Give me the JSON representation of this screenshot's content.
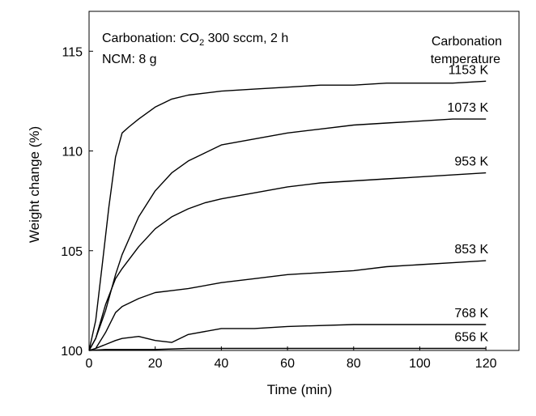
{
  "chart_data": {
    "type": "line",
    "title": "",
    "xlabel": "Time (min)",
    "ylabel": "Weight change (%)",
    "xlim": [
      0,
      130
    ],
    "ylim": [
      100,
      117
    ],
    "xticks": [
      0,
      20,
      40,
      60,
      80,
      100,
      120
    ],
    "yticks": [
      100,
      105,
      110,
      115
    ],
    "grid": false,
    "line_color": "#000000",
    "annotations": {
      "condition_prefix": "Carbonation: CO",
      "condition_sub": "2",
      "condition_suffix": " 300 sccm, 2 h",
      "ncm": "NCM: 8 g",
      "legend_title_line1": "Carbonation",
      "legend_title_line2": "temperature"
    },
    "series": [
      {
        "name": "1153 K",
        "x": [
          0,
          2,
          4,
          6,
          8,
          10,
          12,
          15,
          20,
          25,
          30,
          40,
          50,
          60,
          70,
          80,
          90,
          100,
          110,
          120
        ],
        "y": [
          100,
          101.5,
          104.3,
          107.2,
          109.7,
          110.9,
          111.2,
          111.6,
          112.2,
          112.6,
          112.8,
          113.0,
          113.1,
          113.2,
          113.3,
          113.3,
          113.4,
          113.4,
          113.4,
          113.5
        ]
      },
      {
        "name": "1073 K",
        "x": [
          0,
          2,
          5,
          8,
          10,
          15,
          20,
          25,
          30,
          35,
          40,
          50,
          60,
          70,
          80,
          90,
          100,
          110,
          120
        ],
        "y": [
          100,
          100.6,
          102.0,
          103.8,
          104.8,
          106.7,
          108.0,
          108.9,
          109.5,
          109.9,
          110.3,
          110.6,
          110.9,
          111.1,
          111.3,
          111.4,
          111.5,
          111.6,
          111.6
        ]
      },
      {
        "name": "953 K",
        "x": [
          0,
          2,
          5,
          8,
          10,
          15,
          20,
          25,
          30,
          35,
          40,
          50,
          60,
          70,
          80,
          90,
          100,
          110,
          120
        ],
        "y": [
          100,
          100.6,
          102.3,
          103.6,
          104.1,
          105.2,
          106.1,
          106.7,
          107.1,
          107.4,
          107.6,
          107.9,
          108.2,
          108.4,
          108.5,
          108.6,
          108.7,
          108.8,
          108.9
        ]
      },
      {
        "name": "853 K",
        "x": [
          0,
          2,
          5,
          8,
          10,
          15,
          20,
          25,
          30,
          40,
          50,
          60,
          70,
          80,
          90,
          100,
          110,
          120
        ],
        "y": [
          100,
          100.1,
          100.9,
          101.9,
          102.2,
          102.6,
          102.9,
          103.0,
          103.1,
          103.4,
          103.6,
          103.8,
          103.9,
          104.0,
          104.2,
          104.3,
          104.4,
          104.5
        ]
      },
      {
        "name": "768 K",
        "x": [
          0,
          2,
          5,
          8,
          10,
          15,
          20,
          25,
          30,
          40,
          50,
          60,
          80,
          100,
          120
        ],
        "y": [
          100,
          100.1,
          100.3,
          100.5,
          100.6,
          100.7,
          100.5,
          100.4,
          100.8,
          101.1,
          101.1,
          101.2,
          101.3,
          101.3,
          101.3
        ]
      },
      {
        "name": "656 K",
        "x": [
          0,
          5,
          10,
          20,
          30,
          40,
          60,
          80,
          100,
          120
        ],
        "y": [
          100,
          100.05,
          100.05,
          100.05,
          100.1,
          100.1,
          100.1,
          100.1,
          100.1,
          100.1
        ]
      }
    ]
  }
}
